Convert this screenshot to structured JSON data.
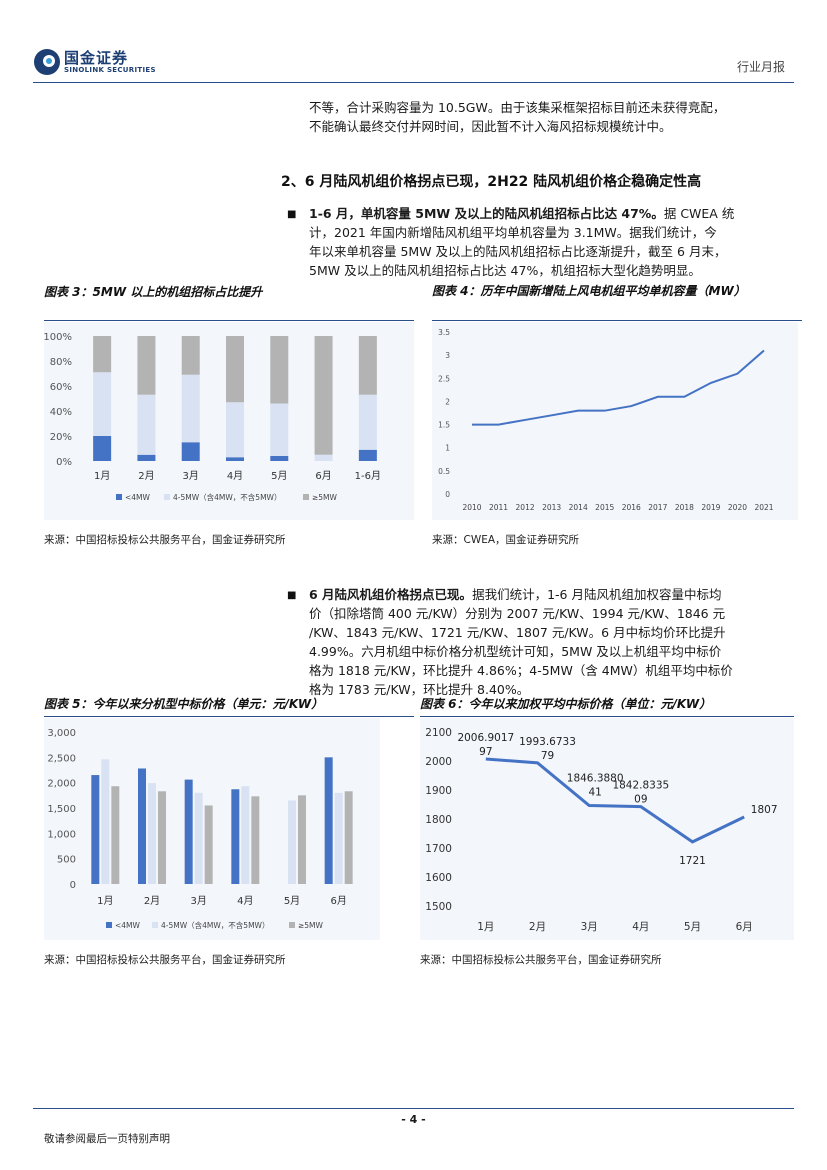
{
  "header": {
    "logo_cn": "国金证券",
    "logo_en": "SINOLINK SECURITIES",
    "report_type": "行业月报"
  },
  "intro_text": {
    "line1": "不等，合计采购容量为 10.5GW。由于该集采框架招标目前还未获得竞配，",
    "line2": "不能确认最终交付并网时间，因此暂不计入海风招标规模统计中。"
  },
  "section_heading": "2、6 月陆风机组价格拐点已现，2H22 陆风机组价格企稳确定性高",
  "bullet1": {
    "bold": "1-6 月，单机容量 5MW 及以上的陆风机组招标占比达 47%。",
    "line1_rest": "据 CWEA 统",
    "line2": "计，2021 年国内新增陆风机组平均单机容量为 3.1MW。据我们统计，今",
    "line3": "年以来单机容量 5MW 及以上的陆风机组招标占比逐渐提升，截至 6 月末，",
    "line4": "5MW 及以上的陆风机组招标占比达 47%，机组招标大型化趋势明显。"
  },
  "bullet2": {
    "bold": "6 月陆风机组价格拐点已现。",
    "line1_rest": "据我们统计，1-6 月陆风机组加权容量中标均",
    "line2": "价（扣除塔筒 400 元/KW）分别为 2007 元/KW、1994 元/KW、1846 元",
    "line3": "/KW、1843 元/KW、1721 元/KW、1807 元/KW。6 月中标均价环比提升",
    "line4": "4.99%。六月机组中标价格分机型统计可知，5MW 及以上机组平均中标价",
    "line5": "格为 1818 元/KW，环比提升 4.86%；4-5MW（含 4MW）机组平均中标价",
    "line6": "格为 1783 元/KW，环比提升 8.40%。"
  },
  "figures": {
    "fig3_title": "图表 3：5MW 以上的机组招标占比提升",
    "fig4_title": "图表 4：历年中国新增陆上风电机组平均单机容量（MW）",
    "fig5_title": "图表 5：今年以来分机型中标价格（单元：元/KW）",
    "fig6_title": "图表 6：今年以来加权平均中标价格（单位：元/KW）",
    "source_a": "来源：中国招标投标公共服务平台，国金证券研究所",
    "source_b": "来源：CWEA，国金证券研究所",
    "source_c": "来源：中国招标投标公共服务平台，国金证券研究所",
    "source_d": "来源：中国招标投标公共服务平台，国金证券研究所"
  },
  "footer": {
    "page": "- 4 -",
    "disclaimer": "敬请参阅最后一页特别声明"
  },
  "colors": {
    "series_lt4": "#4472c4",
    "series_4to5": "#d9e2f3",
    "series_ge5": "#b3b3b3",
    "line": "#4472c4",
    "accent": "#2a4e8a"
  },
  "chart_data": [
    {
      "id": "fig3",
      "type": "bar",
      "stacked": true,
      "categories": [
        "1月",
        "2月",
        "3月",
        "4月",
        "5月",
        "6月",
        "1-6月"
      ],
      "series": [
        {
          "name": "<4MW",
          "values": [
            20,
            5,
            15,
            3,
            4,
            0,
            9
          ]
        },
        {
          "name": "4-5MW（含4MW，不含5MW）",
          "values": [
            51,
            48,
            54,
            44,
            42,
            5,
            44
          ]
        },
        {
          "name": "≥5MW",
          "values": [
            29,
            47,
            31,
            53,
            54,
            95,
            47
          ]
        }
      ],
      "ylim": [
        0,
        100
      ],
      "yticks": [
        "0%",
        "20%",
        "40%",
        "60%",
        "80%",
        "100%"
      ],
      "legend": "bottom"
    },
    {
      "id": "fig4",
      "type": "line",
      "x": [
        "2010",
        "2011",
        "2012",
        "2013",
        "2014",
        "2015",
        "2016",
        "2017",
        "2018",
        "2019",
        "2020",
        "2021"
      ],
      "values": [
        1.5,
        1.5,
        1.6,
        1.7,
        1.8,
        1.8,
        1.9,
        2.1,
        2.1,
        2.4,
        2.6,
        3.1
      ],
      "ylim": [
        0,
        3.5
      ],
      "yticks": [
        "0",
        "0.5",
        "1",
        "1.5",
        "2",
        "2.5",
        "3",
        "3.5"
      ],
      "grid": false
    },
    {
      "id": "fig5",
      "type": "bar",
      "categories": [
        "1月",
        "2月",
        "3月",
        "4月",
        "5月",
        "6月"
      ],
      "series": [
        {
          "name": "<4MW",
          "values": [
            2150,
            2280,
            2060,
            1870,
            null,
            2500
          ]
        },
        {
          "name": "4-5MW（含4MW，不含5MW）",
          "values": [
            2460,
            1990,
            1800,
            1930,
            1650,
            1800
          ]
        },
        {
          "name": "≥5MW",
          "values": [
            1930,
            1830,
            1550,
            1730,
            1750,
            1830
          ]
        }
      ],
      "ylim": [
        0,
        3000
      ],
      "yticks": [
        "0",
        "500",
        "1,000",
        "1,500",
        "2,000",
        "2,500",
        "3,000"
      ],
      "legend": "bottom"
    },
    {
      "id": "fig6",
      "type": "line",
      "x": [
        "1月",
        "2月",
        "3月",
        "4月",
        "5月",
        "6月"
      ],
      "values": [
        2006.901797,
        1993.673379,
        1846.388041,
        1842.833509,
        1721,
        1807
      ],
      "data_labels": [
        [
          "2006.9017",
          "97"
        ],
        [
          "1993.6733",
          "79"
        ],
        [
          "1846.3880",
          "41"
        ],
        [
          "1842.8335",
          "09"
        ],
        [
          "1721"
        ],
        [
          "1807"
        ]
      ],
      "ylim": [
        1500,
        2100
      ],
      "yticks": [
        "1500",
        "1600",
        "1700",
        "1800",
        "1900",
        "2000",
        "2100"
      ],
      "grid": false
    }
  ]
}
